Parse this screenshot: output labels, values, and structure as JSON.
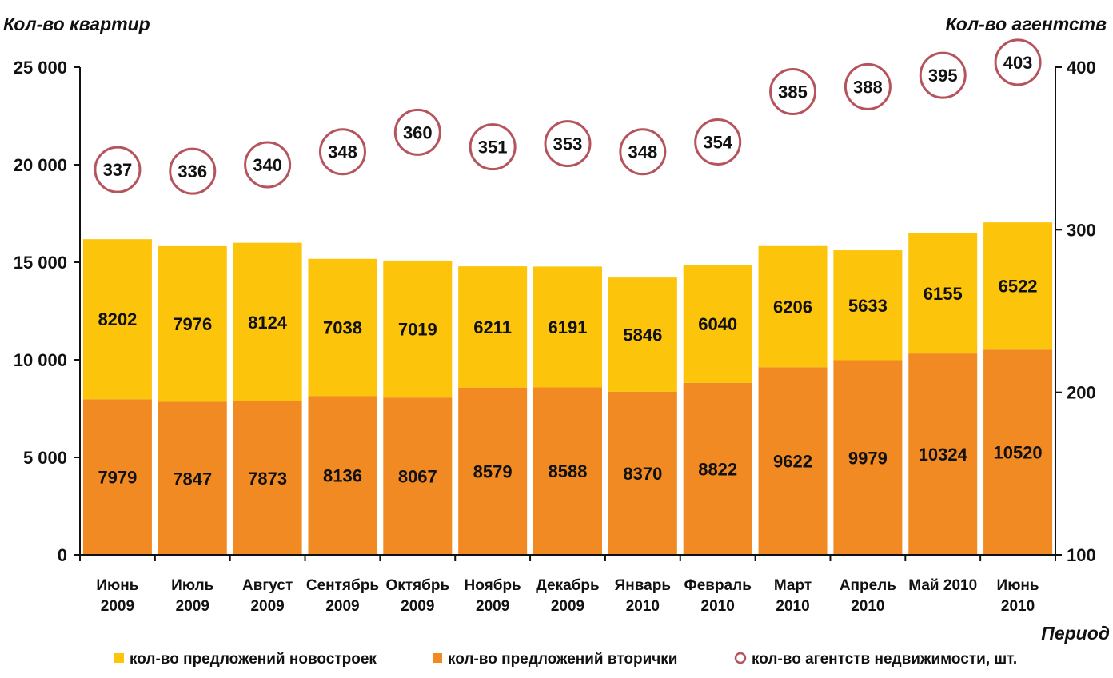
{
  "chart_data": {
    "type": "bar",
    "stacked": true,
    "categories": [
      [
        "Июнь",
        "2009"
      ],
      [
        "Июль",
        "2009"
      ],
      [
        "Август",
        "2009"
      ],
      [
        "Сентябрь",
        "2009"
      ],
      [
        "Октябрь",
        "2009"
      ],
      [
        "Ноябрь",
        "2009"
      ],
      [
        "Декабрь",
        "2009"
      ],
      [
        "Январь",
        "2010"
      ],
      [
        "Февраль",
        "2010"
      ],
      [
        "Март",
        "2010"
      ],
      [
        "Апрель",
        "2010"
      ],
      [
        "Май 2010",
        ""
      ],
      [
        "Июнь",
        "2010"
      ]
    ],
    "series": [
      {
        "name": "кол-во предложений вторички",
        "axis": "left",
        "color": "#f28a24",
        "values": [
          7979,
          7847,
          7873,
          8136,
          8067,
          8579,
          8588,
          8370,
          8822,
          9622,
          9979,
          10324,
          10520
        ]
      },
      {
        "name": "кол-во предложений новостроек",
        "axis": "left",
        "color": "#fcc40a",
        "values": [
          8202,
          7976,
          8124,
          7038,
          7019,
          6211,
          6191,
          5846,
          6040,
          6206,
          5633,
          6155,
          6522
        ]
      },
      {
        "name": "кол-во агентств недвижимости, шт.",
        "axis": "right",
        "type": "marker",
        "color": "#b5545c",
        "values": [
          337,
          336,
          340,
          348,
          360,
          351,
          353,
          348,
          354,
          385,
          388,
          395,
          403
        ]
      }
    ],
    "ylabel": "Кол-во квартир",
    "y2label": "Кол-во агентств",
    "xlabel": "Период",
    "ylim": [
      0,
      25000
    ],
    "yticks": [
      "25 000",
      "20 000",
      "15 000",
      "10 000",
      "5 000",
      "0"
    ],
    "y2lim": [
      100,
      400
    ],
    "y2ticks": [
      "400",
      "300",
      "200",
      "100"
    ],
    "grid": false,
    "legend_position": "bottom",
    "legend": [
      "кол-во предложений новостроек",
      "кол-во предложений вторички",
      "кол-во агентств недвижимости, шт."
    ]
  }
}
